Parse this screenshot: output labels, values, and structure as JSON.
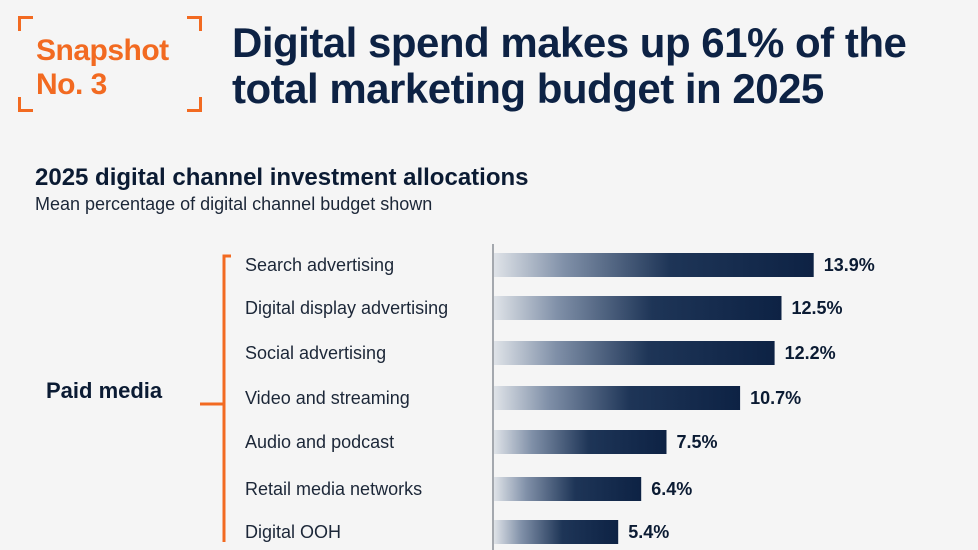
{
  "badge": {
    "line1": "Snapshot",
    "line2": "No. 3"
  },
  "headline": "Digital spend makes up 61% of the total marketing budget in 2025",
  "colors": {
    "accent": "#f26a21",
    "bar_dark": "#0d2244",
    "bar_light": "#dfe3e8"
  },
  "chart_data": {
    "type": "bar",
    "orientation": "horizontal",
    "title": "2025 digital channel investment allocations",
    "subtitle": "Mean percentage of digital channel budget shown",
    "group_label": "Paid media",
    "categories": [
      "Search advertising",
      "Digital display advertising",
      "Social advertising",
      "Video and streaming",
      "Audio and podcast",
      "Retail media networks",
      "Digital OOH"
    ],
    "values": [
      13.9,
      12.5,
      12.2,
      10.7,
      7.5,
      6.4,
      5.4
    ],
    "value_labels": [
      "13.9%",
      "12.5%",
      "12.2%",
      "10.7%",
      "7.5%",
      "6.4%",
      "5.4%"
    ],
    "xlim": [
      0,
      14.5
    ]
  }
}
